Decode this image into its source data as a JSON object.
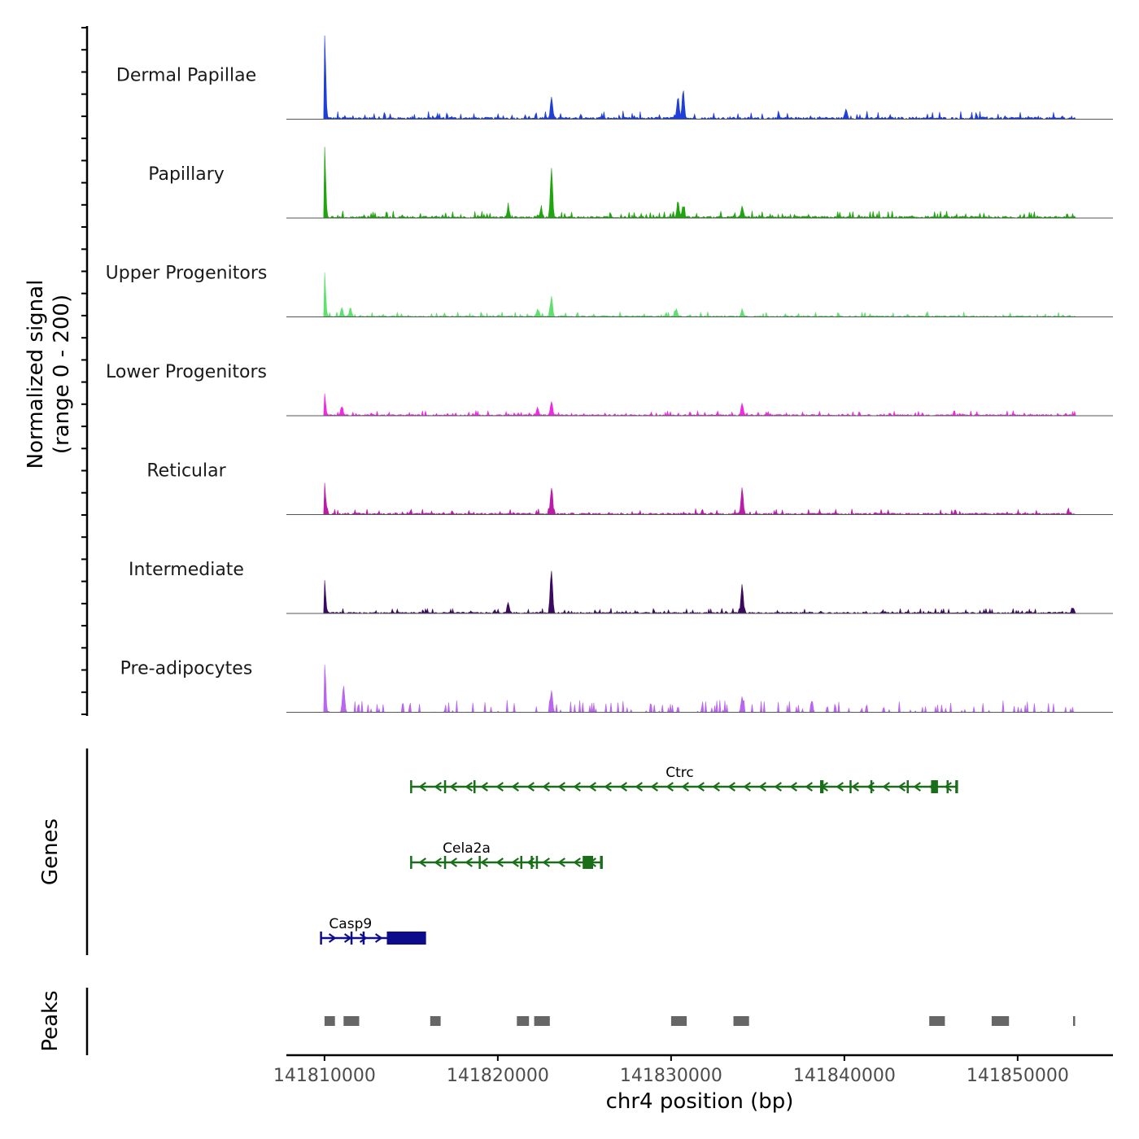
{
  "chart_data": {
    "type": "coverage-track",
    "region": {
      "chromosome": "chr4",
      "start": 141807800,
      "end": 141855500
    },
    "y_axis_label": [
      "Normalized signal",
      "(range 0 - 200)"
    ],
    "x_axis_label": "chr4 position (bp)",
    "x_ticks": [
      {
        "value": 141810000,
        "label": "141810000"
      },
      {
        "value": 141820000,
        "label": "141820000"
      },
      {
        "value": 141830000,
        "label": "141830000"
      },
      {
        "value": 141840000,
        "label": "141840000"
      },
      {
        "value": 141850000,
        "label": "141850000"
      }
    ],
    "tracks": [
      {
        "name": "Dermal Papillae",
        "color": "#1f3fd6",
        "peaks": [
          [
            141810000,
            0.95
          ],
          [
            141823100,
            0.25
          ],
          [
            141830400,
            0.25
          ],
          [
            141830700,
            0.33
          ],
          [
            141840100,
            0.1
          ]
        ],
        "noise": 0.04,
        "extent": [
          141810000,
          141853300
        ],
        "sparse": false
      },
      {
        "name": "Papillary",
        "color": "#1ea50f",
        "peaks": [
          [
            141810000,
            0.8
          ],
          [
            141823100,
            0.55
          ],
          [
            141822500,
            0.1
          ],
          [
            141820600,
            0.1
          ],
          [
            141830400,
            0.18
          ],
          [
            141830700,
            0.13
          ],
          [
            141834100,
            0.13
          ]
        ],
        "noise": 0.035,
        "extent": [
          141810000,
          141853300
        ],
        "sparse": false
      },
      {
        "name": "Upper Progenitors",
        "color": "#5fe070",
        "peaks": [
          [
            141810000,
            0.5
          ],
          [
            141811000,
            0.1
          ],
          [
            141811500,
            0.1
          ],
          [
            141822300,
            0.08
          ],
          [
            141823100,
            0.22
          ],
          [
            141830300,
            0.09
          ],
          [
            141834100,
            0.08
          ]
        ],
        "noise": 0.025,
        "extent": [
          141810000,
          141853300
        ],
        "sparse": false
      },
      {
        "name": "Lower Progenitors",
        "color": "#ee2ae2",
        "peaks": [
          [
            141810000,
            0.25
          ],
          [
            141811000,
            0.1
          ],
          [
            141822300,
            0.08
          ],
          [
            141823100,
            0.16
          ],
          [
            141834100,
            0.14
          ]
        ],
        "noise": 0.025,
        "extent": [
          141810000,
          141853300
        ],
        "sparse": false
      },
      {
        "name": "Reticular",
        "color": "#b81da8",
        "peaks": [
          [
            141810000,
            0.36
          ],
          [
            141823100,
            0.3
          ],
          [
            141834100,
            0.3
          ]
        ],
        "noise": 0.03,
        "extent": [
          141810000,
          141853300
        ],
        "sparse": false
      },
      {
        "name": "Intermediate",
        "color": "#3a0a5e",
        "peaks": [
          [
            141810000,
            0.38
          ],
          [
            141820600,
            0.12
          ],
          [
            141823100,
            0.47
          ],
          [
            141834100,
            0.32
          ],
          [
            141853200,
            0.06
          ]
        ],
        "noise": 0.025,
        "extent": [
          141810000,
          141853300
        ],
        "sparse": false
      },
      {
        "name": "Pre-adipocytes",
        "color": "#b865f0",
        "peaks": [
          [
            141810000,
            0.55
          ],
          [
            141811100,
            0.3
          ],
          [
            141823100,
            0.25
          ],
          [
            141834100,
            0.18
          ]
        ],
        "noise": 0.1,
        "extent": [
          141810000,
          141853300
        ],
        "sparse": true
      }
    ],
    "genes_label": "Genes",
    "genes": [
      {
        "name": "Ctrc",
        "strand": "-",
        "color": "#1a6e1a",
        "start": 141815000,
        "end": 141846500,
        "label_pos": 141830500,
        "exons": [
          [
            141816900,
            141817000
          ],
          [
            141818600,
            141818700
          ],
          [
            141838600,
            141838800
          ],
          [
            141840300,
            141840400
          ],
          [
            141841500,
            141841600
          ],
          [
            141843600,
            141843700
          ],
          [
            141845000,
            141845400
          ],
          [
            141845900,
            141846000
          ],
          [
            141846400,
            141846500
          ]
        ]
      },
      {
        "name": "Cela2a",
        "strand": "-",
        "color": "#1a6e1a",
        "start": 141815000,
        "end": 141826000,
        "label_pos": 141818200,
        "exons": [
          [
            141816900,
            141817000
          ],
          [
            141818900,
            141819000
          ],
          [
            141821300,
            141821400
          ],
          [
            141821900,
            141822000
          ],
          [
            141822200,
            141822300
          ],
          [
            141824900,
            141825500
          ],
          [
            141825900,
            141826000
          ]
        ]
      },
      {
        "name": "Casp9",
        "strand": "+",
        "color": "#0d0d8c",
        "start": 141809800,
        "end": 141815800,
        "label_pos": 141811500,
        "exons": [
          [
            141811500,
            141811600
          ],
          [
            141812200,
            141812300
          ],
          [
            141813600,
            141815800
          ]
        ]
      }
    ],
    "peaks_label": "Peaks",
    "peak_regions": [
      [
        141810000,
        141810600
      ],
      [
        141811100,
        141812000
      ],
      [
        141816100,
        141816700
      ],
      [
        141821100,
        141821800
      ],
      [
        141822100,
        141823000
      ],
      [
        141830000,
        141830900
      ],
      [
        141833600,
        141834500
      ],
      [
        141844900,
        141845800
      ],
      [
        141848500,
        141849500
      ],
      [
        141853200,
        141853300
      ]
    ]
  }
}
